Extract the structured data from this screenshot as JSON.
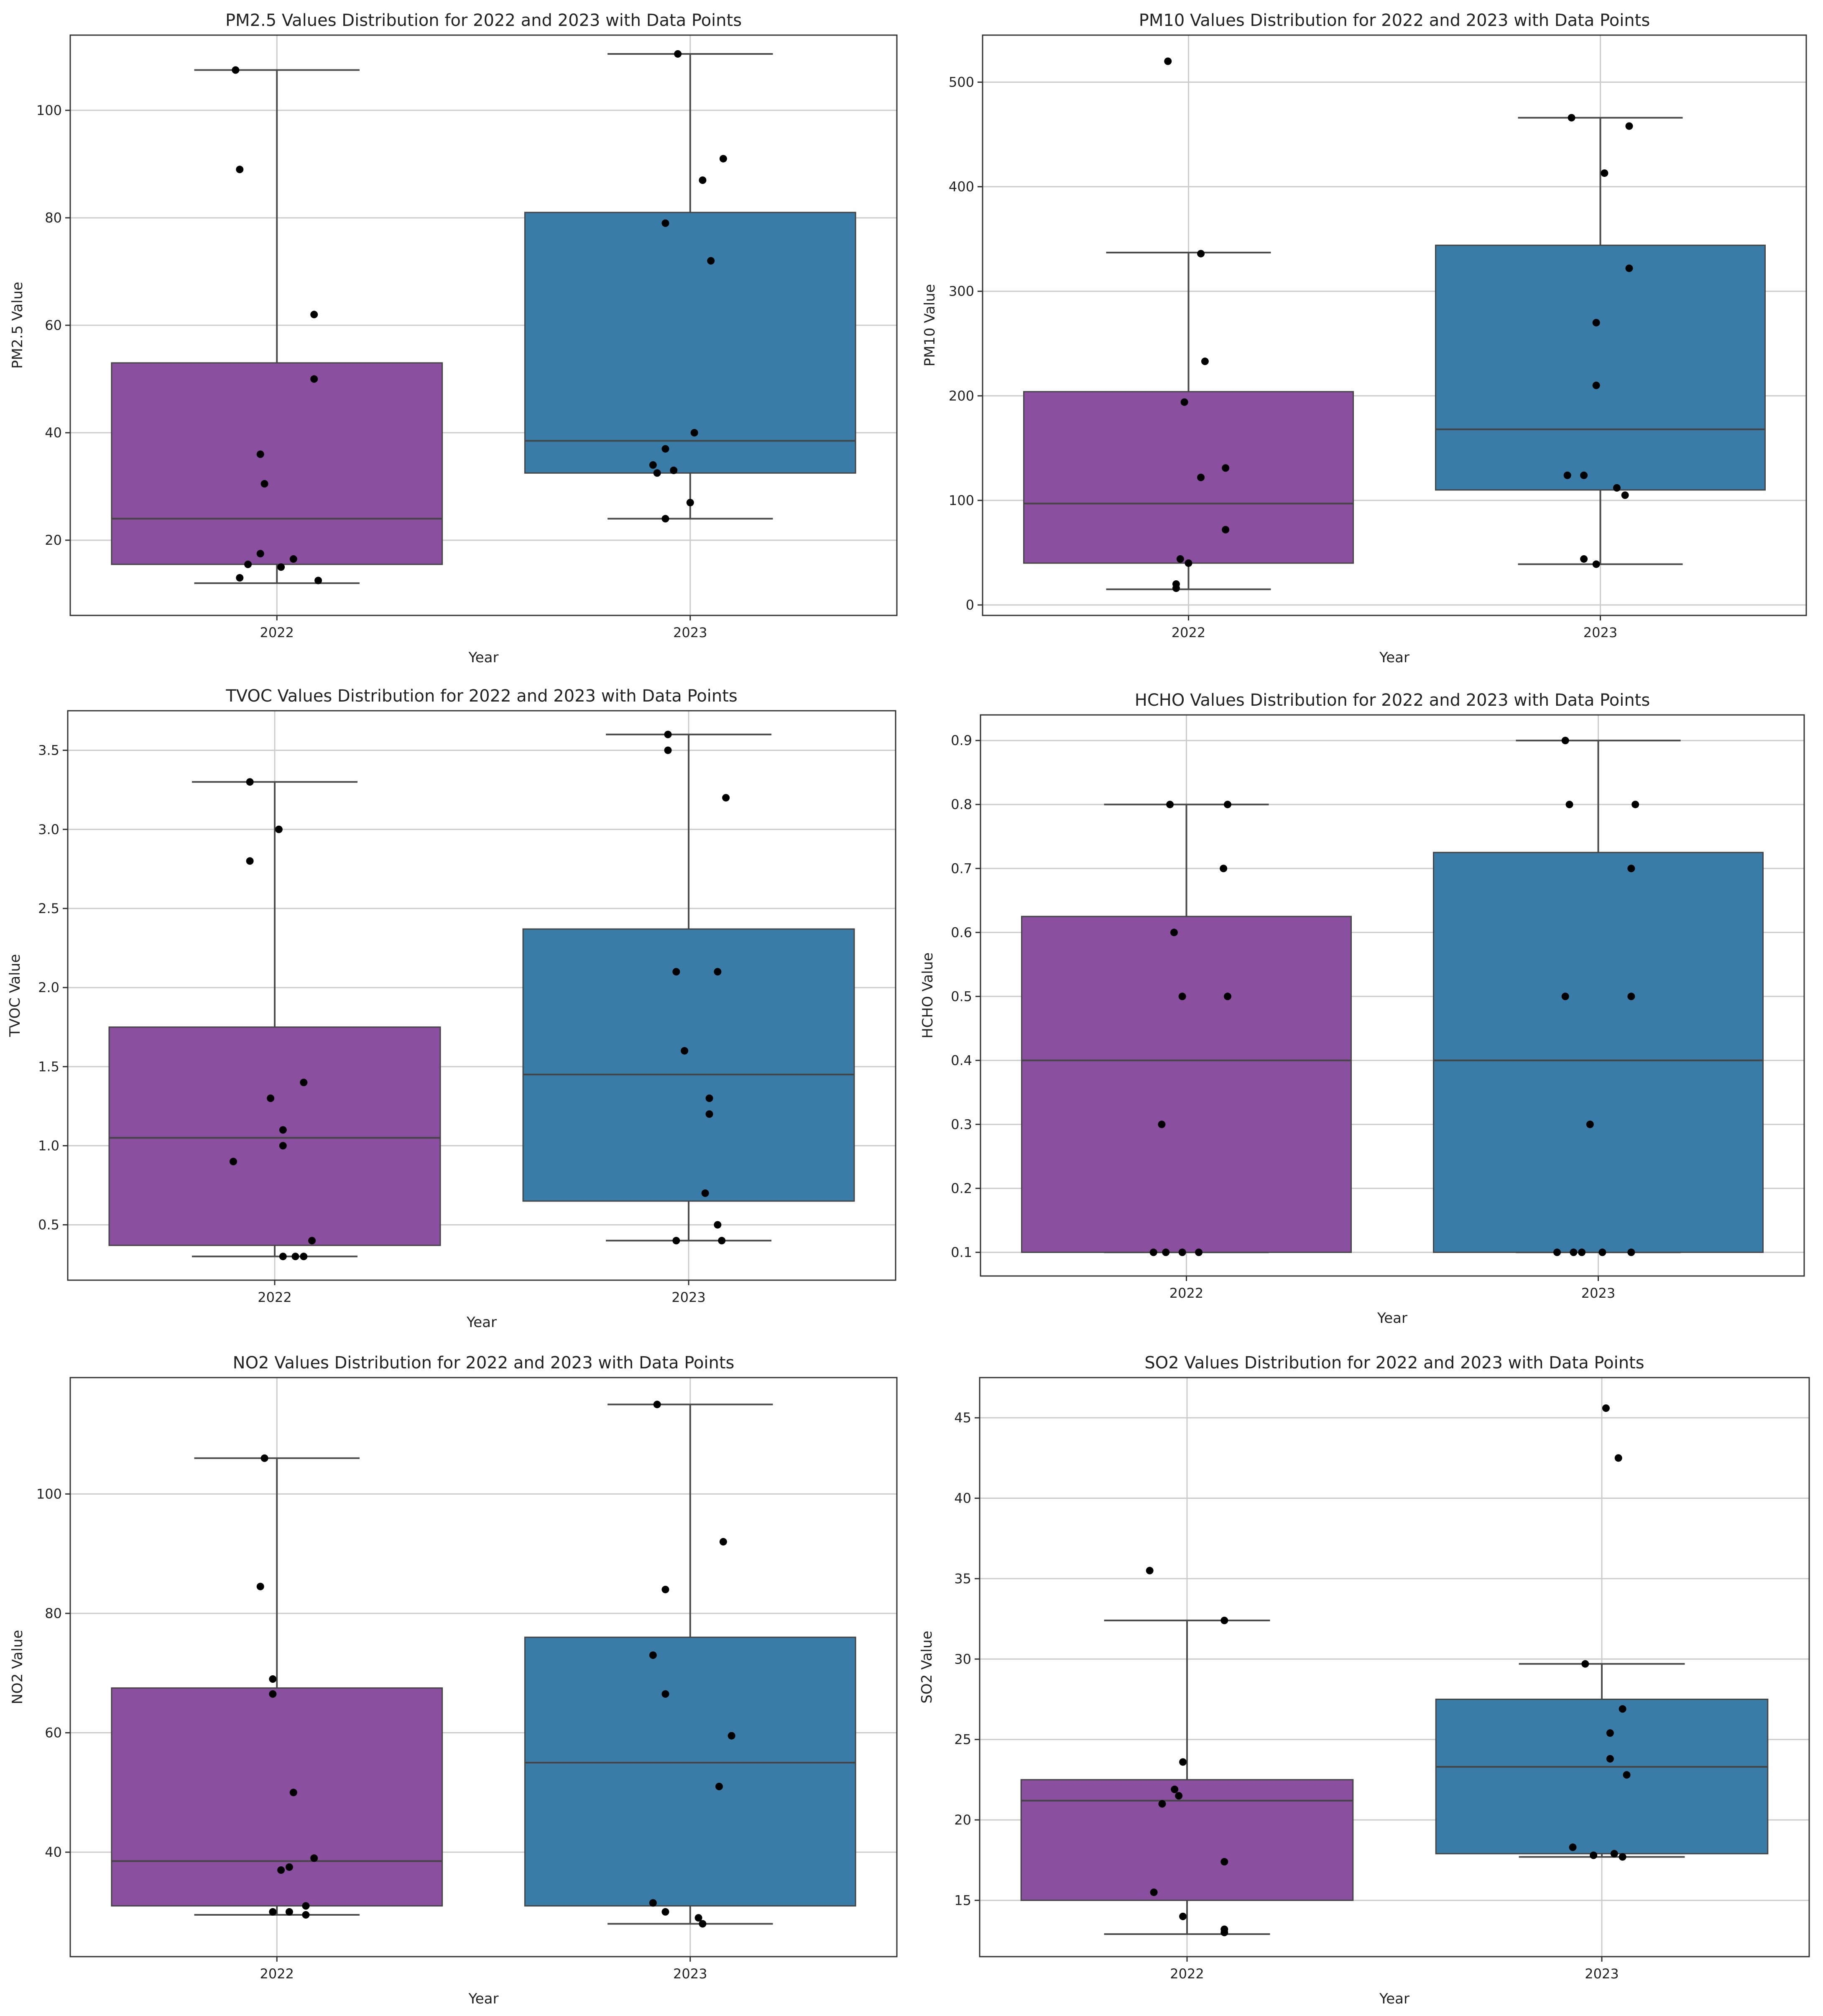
{
  "colors": {
    "2022": "#8a4f9e",
    "2023": "#3a7ca8"
  },
  "chart_data": [
    {
      "type": "box",
      "title": "PM2.5 Values Distribution for 2022 and 2023 with Data Points",
      "xlabel": "Year",
      "ylabel": "PM2.5 Value",
      "categories": [
        "2022",
        "2023"
      ],
      "ylim": [
        6,
        114
      ],
      "yticks": [
        20,
        40,
        60,
        80,
        100
      ],
      "tick_labels": [
        "20",
        "40",
        "60",
        "80",
        "100"
      ],
      "boxes": [
        {
          "year": "2022",
          "q1": 15.5,
          "median": 24,
          "q3": 53,
          "whisker_low": 12,
          "whisker_high": 107.5
        },
        {
          "year": "2023",
          "q1": 32.5,
          "median": 38.5,
          "q3": 81,
          "whisker_low": 24,
          "whisker_high": 110.5
        }
      ],
      "points": [
        [
          [
            -0.1,
            107.5
          ],
          [
            -0.09,
            89
          ],
          [
            0.09,
            62
          ],
          [
            0.09,
            50
          ],
          [
            -0.04,
            36
          ],
          [
            -0.03,
            30.5
          ],
          [
            -0.04,
            17.5
          ],
          [
            -0.07,
            15.5
          ],
          [
            0.04,
            16.5
          ],
          [
            0.01,
            15
          ],
          [
            -0.09,
            13
          ],
          [
            0.1,
            12.5
          ]
        ],
        [
          [
            -0.03,
            110.5
          ],
          [
            0.08,
            91
          ],
          [
            0.03,
            87
          ],
          [
            -0.06,
            79
          ],
          [
            0.05,
            72
          ],
          [
            0.01,
            40
          ],
          [
            -0.06,
            37
          ],
          [
            -0.09,
            34
          ],
          [
            -0.08,
            32.5
          ],
          [
            -0.04,
            33
          ],
          [
            0,
            27
          ],
          [
            -0.06,
            24
          ]
        ]
      ]
    },
    {
      "type": "box",
      "title": "PM10 Values Distribution for 2022 and 2023 with Data Points",
      "xlabel": "Year",
      "ylabel": "PM10 Value",
      "categories": [
        "2022",
        "2023"
      ],
      "ylim": [
        -10,
        545
      ],
      "yticks": [
        0,
        100,
        200,
        300,
        400,
        500
      ],
      "tick_labels": [
        "0",
        "100",
        "200",
        "300",
        "400",
        "500"
      ],
      "boxes": [
        {
          "year": "2022",
          "q1": 40,
          "median": 97,
          "q3": 204,
          "whisker_low": 15,
          "whisker_high": 337
        },
        {
          "year": "2023",
          "q1": 110,
          "median": 168,
          "q3": 344,
          "whisker_low": 39,
          "whisker_high": 466
        }
      ],
      "points": [
        [
          [
            -0.05,
            520
          ],
          [
            0.03,
            336
          ],
          [
            0.04,
            233
          ],
          [
            -0.01,
            194
          ],
          [
            0.03,
            122
          ],
          [
            0.09,
            131
          ],
          [
            0.09,
            72
          ],
          [
            -0.02,
            44
          ],
          [
            0,
            40
          ],
          [
            -0.03,
            20
          ],
          [
            -0.03,
            16
          ]
        ],
        [
          [
            -0.07,
            466
          ],
          [
            0.07,
            458
          ],
          [
            0.01,
            413
          ],
          [
            0.07,
            322
          ],
          [
            -0.01,
            270
          ],
          [
            -0.01,
            210
          ],
          [
            -0.08,
            124
          ],
          [
            -0.04,
            124
          ],
          [
            0.04,
            112
          ],
          [
            0.06,
            105
          ],
          [
            -0.04,
            44
          ],
          [
            -0.01,
            39
          ]
        ]
      ]
    },
    {
      "type": "box",
      "title": "TVOC Values Distribution for 2022 and 2023 with Data Points",
      "xlabel": "Year",
      "ylabel": "TVOC Value",
      "categories": [
        "2022",
        "2023"
      ],
      "ylim": [
        0.15,
        3.75
      ],
      "yticks": [
        0.5,
        1.0,
        1.5,
        2.0,
        2.5,
        3.0,
        3.5
      ],
      "tick_labels": [
        "0.5",
        "1.0",
        "1.5",
        "2.0",
        "2.5",
        "3.0",
        "3.5"
      ],
      "boxes": [
        {
          "year": "2022",
          "q1": 0.37,
          "median": 1.05,
          "q3": 1.75,
          "whisker_low": 0.3,
          "whisker_high": 3.3
        },
        {
          "year": "2023",
          "q1": 0.65,
          "median": 1.45,
          "q3": 2.37,
          "whisker_low": 0.4,
          "whisker_high": 3.6
        }
      ],
      "points": [
        [
          [
            -0.06,
            3.3
          ],
          [
            0.01,
            3.0
          ],
          [
            -0.06,
            2.8
          ],
          [
            0.07,
            1.4
          ],
          [
            -0.01,
            1.3
          ],
          [
            0.02,
            1.1
          ],
          [
            0.02,
            1.0
          ],
          [
            -0.1,
            0.9
          ],
          [
            0.09,
            0.4
          ],
          [
            0.02,
            0.3
          ],
          [
            0.05,
            0.3
          ],
          [
            0.07,
            0.3
          ]
        ],
        [
          [
            -0.05,
            3.6
          ],
          [
            -0.05,
            3.5
          ],
          [
            0.09,
            3.2
          ],
          [
            -0.03,
            2.1
          ],
          [
            0.07,
            2.1
          ],
          [
            -0.01,
            1.6
          ],
          [
            0.05,
            1.3
          ],
          [
            0.05,
            1.2
          ],
          [
            0.04,
            0.7
          ],
          [
            0.07,
            0.5
          ],
          [
            -0.03,
            0.4
          ],
          [
            0.08,
            0.4
          ]
        ]
      ]
    },
    {
      "type": "box",
      "title": "HCHO Values Distribution for 2022 and 2023 with Data Points",
      "xlabel": "Year",
      "ylabel": "HCHO Value",
      "categories": [
        "2022",
        "2023"
      ],
      "ylim": [
        0.063,
        0.94
      ],
      "yticks": [
        0.1,
        0.2,
        0.3,
        0.4,
        0.5,
        0.6,
        0.7,
        0.8,
        0.9
      ],
      "tick_labels": [
        "0.1",
        "0.2",
        "0.3",
        "0.4",
        "0.5",
        "0.6",
        "0.7",
        "0.8",
        "0.9"
      ],
      "boxes": [
        {
          "year": "2022",
          "q1": 0.1,
          "median": 0.4,
          "q3": 0.625,
          "whisker_low": 0.1,
          "whisker_high": 0.8
        },
        {
          "year": "2023",
          "q1": 0.1,
          "median": 0.4,
          "q3": 0.725,
          "whisker_low": 0.1,
          "whisker_high": 0.9
        }
      ],
      "points": [
        [
          [
            -0.04,
            0.8
          ],
          [
            0.1,
            0.8
          ],
          [
            0.09,
            0.7
          ],
          [
            -0.03,
            0.6
          ],
          [
            -0.01,
            0.5
          ],
          [
            0.1,
            0.5
          ],
          [
            -0.06,
            0.3
          ],
          [
            -0.08,
            0.1
          ],
          [
            -0.05,
            0.1
          ],
          [
            -0.01,
            0.1
          ],
          [
            0.03,
            0.1
          ]
        ],
        [
          [
            -0.08,
            0.9
          ],
          [
            -0.07,
            0.8
          ],
          [
            0.09,
            0.8
          ],
          [
            0.08,
            0.7
          ],
          [
            -0.08,
            0.5
          ],
          [
            0.08,
            0.5
          ],
          [
            -0.02,
            0.3
          ],
          [
            -0.1,
            0.1
          ],
          [
            -0.06,
            0.1
          ],
          [
            -0.04,
            0.1
          ],
          [
            0.01,
            0.1
          ],
          [
            0.08,
            0.1
          ]
        ]
      ]
    },
    {
      "type": "box",
      "title": "NO2 Values Distribution for 2022 and 2023 with Data Points",
      "xlabel": "Year",
      "ylabel": "NO2 Value",
      "categories": [
        "2022",
        "2023"
      ],
      "ylim": [
        22.5,
        119.5
      ],
      "yticks": [
        40,
        60,
        80,
        100
      ],
      "tick_labels": [
        "40",
        "60",
        "80",
        "100"
      ],
      "boxes": [
        {
          "year": "2022",
          "q1": 31,
          "median": 38.5,
          "q3": 67.5,
          "whisker_low": 29.5,
          "whisker_high": 106
        },
        {
          "year": "2023",
          "q1": 31,
          "median": 55,
          "q3": 76,
          "whisker_low": 28,
          "whisker_high": 115
        }
      ],
      "points": [
        [
          [
            -0.03,
            106
          ],
          [
            -0.04,
            84.5
          ],
          [
            -0.01,
            69
          ],
          [
            -0.01,
            66.5
          ],
          [
            0.04,
            50
          ],
          [
            0.09,
            39
          ],
          [
            0.03,
            37.5
          ],
          [
            0.01,
            37
          ],
          [
            0.07,
            31
          ],
          [
            -0.01,
            30
          ],
          [
            0.03,
            30
          ],
          [
            0.07,
            29.5
          ]
        ],
        [
          [
            -0.08,
            115
          ],
          [
            0.08,
            92
          ],
          [
            -0.06,
            84
          ],
          [
            -0.09,
            73
          ],
          [
            -0.06,
            66.5
          ],
          [
            0.1,
            59.5
          ],
          [
            0.07,
            51
          ],
          [
            -0.09,
            31.5
          ],
          [
            -0.06,
            30
          ],
          [
            0.02,
            29
          ],
          [
            0.03,
            28
          ]
        ]
      ]
    },
    {
      "type": "box",
      "title": "SO2 Values Distribution for 2022 and 2023 with Data Points",
      "xlabel": "Year",
      "ylabel": "SO2 Value",
      "categories": [
        "2022",
        "2023"
      ],
      "ylim": [
        11.5,
        47.5
      ],
      "yticks": [
        15,
        20,
        25,
        30,
        35,
        40,
        45
      ],
      "tick_labels": [
        "15",
        "20",
        "25",
        "30",
        "35",
        "40",
        "45"
      ],
      "boxes": [
        {
          "year": "2022",
          "q1": 15,
          "median": 21.2,
          "q3": 22.5,
          "whisker_low": 12.9,
          "whisker_high": 32.4
        },
        {
          "year": "2023",
          "q1": 17.9,
          "median": 23.3,
          "q3": 27.5,
          "whisker_low": 17.7,
          "whisker_high": 29.7
        }
      ],
      "points": [
        [
          [
            -0.09,
            35.5
          ],
          [
            0.09,
            32.4
          ],
          [
            -0.01,
            23.6
          ],
          [
            -0.03,
            21.9
          ],
          [
            -0.02,
            21.5
          ],
          [
            -0.06,
            21
          ],
          [
            0.09,
            17.4
          ],
          [
            -0.08,
            15.5
          ],
          [
            -0.01,
            14
          ],
          [
            0.09,
            13.2
          ],
          [
            0.09,
            13
          ]
        ],
        [
          [
            0.01,
            45.6
          ],
          [
            0.04,
            42.5
          ],
          [
            -0.04,
            29.7
          ],
          [
            0.05,
            26.9
          ],
          [
            0.02,
            25.4
          ],
          [
            0.02,
            23.8
          ],
          [
            0.06,
            22.8
          ],
          [
            -0.07,
            18.3
          ],
          [
            -0.02,
            17.8
          ],
          [
            0.03,
            17.9
          ],
          [
            0.05,
            17.7
          ]
        ]
      ]
    }
  ]
}
